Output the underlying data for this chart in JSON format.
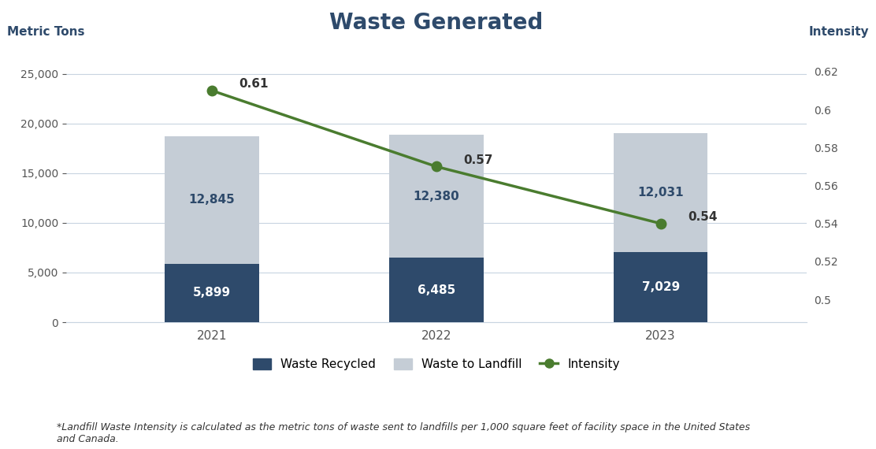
{
  "title": "Waste Generated",
  "title_fontsize": 20,
  "title_fontweight": "bold",
  "title_color": "#2e4a6b",
  "years": [
    2021,
    2022,
    2023
  ],
  "waste_recycled": [
    5899,
    6485,
    7029
  ],
  "waste_to_landfill": [
    12845,
    12380,
    12031
  ],
  "intensity": [
    0.61,
    0.57,
    0.54
  ],
  "bar_color_recycled": "#2e4a6b",
  "bar_color_landfill": "#c5cdd6",
  "intensity_line_color": "#4a7c2f",
  "intensity_marker_color": "#4a7c2f",
  "left_ylabel": "Metric Tons",
  "right_ylabel": "Intensity",
  "ylim_left": [
    0,
    27500
  ],
  "ylim_right": [
    0.488,
    0.632
  ],
  "yticks_left": [
    0,
    5000,
    10000,
    15000,
    20000,
    25000
  ],
  "yticks_right": [
    0.5,
    0.52,
    0.54,
    0.56,
    0.58,
    0.6,
    0.62
  ],
  "background_color": "#ffffff",
  "footnote": "*Landfill Waste Intensity is calculated as the metric tons of waste sent to landfills per 1,000 square feet of facility space in the United States\nand Canada.",
  "bar_width": 0.42,
  "label_recycled": "Waste Recycled",
  "label_landfill": "Waste to Landfill",
  "label_intensity": "Intensity",
  "grid_color": "#c8d4e0",
  "tick_color": "#555555",
  "label_color_landfill_text": "#2e4a6b",
  "recycled_text_color": "#ffffff"
}
